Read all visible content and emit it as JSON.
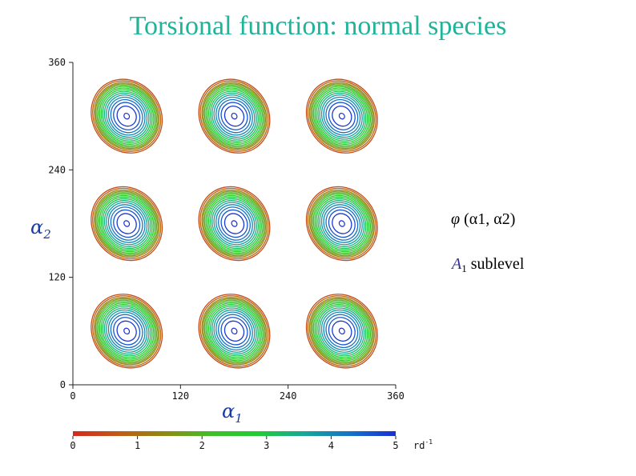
{
  "title": "Torsional function: normal species",
  "chart_data": {
    "type": "contour",
    "title": "Torsional function: normal species",
    "xlabel": "α1",
    "ylabel": "α2",
    "xlim": [
      0,
      360
    ],
    "ylim": [
      0,
      360
    ],
    "xticks": [
      0,
      120,
      240,
      360
    ],
    "yticks": [
      0,
      120,
      240,
      360
    ],
    "peaks": [
      {
        "a1": 60,
        "a2": 60
      },
      {
        "a1": 180,
        "a2": 60
      },
      {
        "a1": 300,
        "a2": 60
      },
      {
        "a1": 60,
        "a2": 180
      },
      {
        "a1": 180,
        "a2": 180
      },
      {
        "a1": 300,
        "a2": 180
      },
      {
        "a1": 60,
        "a2": 300
      },
      {
        "a1": 180,
        "a2": 300
      },
      {
        "a1": 300,
        "a2": 300
      }
    ],
    "levels": [
      0.5,
      0.9,
      1.3,
      1.6,
      1.9,
      2.2,
      2.5,
      2.8,
      3.1,
      3.4,
      3.7,
      4.0,
      4.3,
      4.6,
      4.9
    ],
    "colorbar": {
      "min": 0,
      "max": 5,
      "ticks": [
        0,
        1,
        2,
        3,
        4,
        5
      ],
      "unit": "rd",
      "unit_exponent": "-1",
      "colors": [
        "#d42a1e",
        "#c05a16",
        "#8f8a10",
        "#3fbf2a",
        "#22cc33",
        "#17a896",
        "#1573c7",
        "#1a2fd6"
      ]
    }
  },
  "legend": {
    "function": "φ",
    "args": "α1, α2",
    "sublevel_symbol": "A",
    "sublevel_index": "1",
    "sublevel_text": "sublevel"
  },
  "x_axis_symbol": "α",
  "x_axis_index": "1",
  "y_axis_symbol": "α",
  "y_axis_index": "2"
}
